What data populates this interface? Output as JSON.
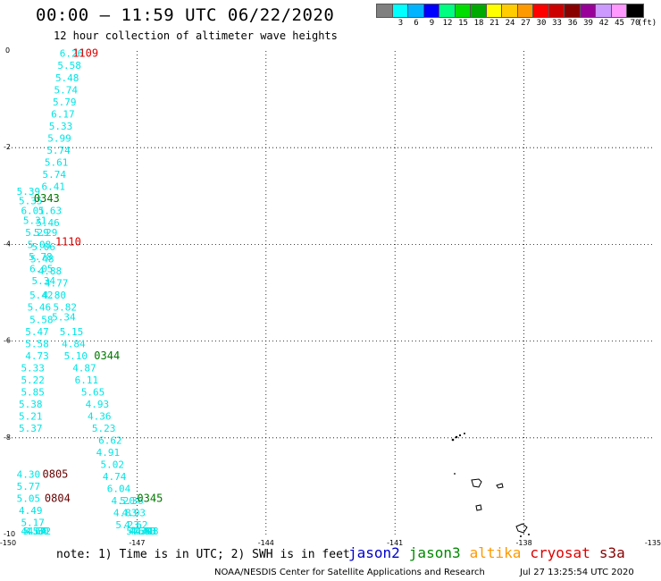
{
  "header": {
    "title": "00:00 – 11:59 UTC 06/22/2020",
    "subtitle": "12 hour collection of altimeter wave heights"
  },
  "colorbar": {
    "unit_label": "(ft)",
    "swatches": [
      {
        "color": "#808080",
        "label": ""
      },
      {
        "color": "#00ffff",
        "label": "3"
      },
      {
        "color": "#00b4ff",
        "label": "6"
      },
      {
        "color": "#0000ff",
        "label": "9"
      },
      {
        "color": "#00ff80",
        "label": "12"
      },
      {
        "color": "#00dd00",
        "label": "15"
      },
      {
        "color": "#00aa00",
        "label": "18"
      },
      {
        "color": "#ffff00",
        "label": "21"
      },
      {
        "color": "#ffcc00",
        "label": "24"
      },
      {
        "color": "#ff9900",
        "label": "27"
      },
      {
        "color": "#ff0000",
        "label": "30"
      },
      {
        "color": "#cc0000",
        "label": "33"
      },
      {
        "color": "#880000",
        "label": "36"
      },
      {
        "color": "#990099",
        "label": "39"
      },
      {
        "color": "#cc99ff",
        "label": "42"
      },
      {
        "color": "#ff99ff",
        "label": "45"
      },
      {
        "color": "#000000",
        "label": "70"
      }
    ]
  },
  "map": {
    "lon_range": [
      -150,
      -135
    ],
    "lat_range": [
      -10,
      0
    ],
    "x_ticks": [
      "-150",
      "-147",
      "-144",
      "-141",
      "-138",
      "-135"
    ],
    "x_tick_values": [
      -150,
      -147,
      -144,
      -141,
      -138,
      -135
    ],
    "y_ticks": [
      "0",
      "-2",
      "-4",
      "-6",
      "-8",
      "-10"
    ],
    "y_tick_values": [
      0,
      -2,
      -4,
      -6,
      -8,
      -10
    ],
    "grid": "dotted",
    "swh_color": "#00e5e5",
    "observations": [
      {
        "lon": -148.8,
        "lat": -0.05,
        "v": "6.26"
      },
      {
        "lon": -148.85,
        "lat": -0.3,
        "v": "5.58"
      },
      {
        "lon": -148.9,
        "lat": -0.55,
        "v": "5.48"
      },
      {
        "lon": -148.93,
        "lat": -0.8,
        "v": "5.74"
      },
      {
        "lon": -148.96,
        "lat": -1.05,
        "v": "5.79"
      },
      {
        "lon": -149.0,
        "lat": -1.3,
        "v": "6.17"
      },
      {
        "lon": -149.05,
        "lat": -1.55,
        "v": "5.33"
      },
      {
        "lon": -149.08,
        "lat": -1.8,
        "v": "5.99"
      },
      {
        "lon": -149.1,
        "lat": -2.05,
        "v": "5.74"
      },
      {
        "lon": -149.15,
        "lat": -2.3,
        "v": "5.61"
      },
      {
        "lon": -149.2,
        "lat": -2.55,
        "v": "5.74"
      },
      {
        "lon": -149.22,
        "lat": -2.8,
        "v": "6.41"
      },
      {
        "lon": -149.3,
        "lat": -3.3,
        "v": "5.63"
      },
      {
        "lon": -149.35,
        "lat": -3.55,
        "v": "5.46"
      },
      {
        "lon": -149.4,
        "lat": -3.75,
        "v": "5.29"
      },
      {
        "lon": -149.45,
        "lat": -4.05,
        "v": "5.06"
      },
      {
        "lon": -149.48,
        "lat": -4.3,
        "v": "5.48"
      },
      {
        "lon": -149.3,
        "lat": -4.55,
        "v": "4.88"
      },
      {
        "lon": -149.15,
        "lat": -4.8,
        "v": "4.77"
      },
      {
        "lon": -149.2,
        "lat": -5.05,
        "v": "4.80"
      },
      {
        "lon": -148.95,
        "lat": -5.3,
        "v": "5.82"
      },
      {
        "lon": -148.98,
        "lat": -5.5,
        "v": "5.34"
      },
      {
        "lon": -148.8,
        "lat": -5.8,
        "v": "5.15"
      },
      {
        "lon": -148.75,
        "lat": -6.05,
        "v": "4.84"
      },
      {
        "lon": -148.7,
        "lat": -6.3,
        "v": "5.10"
      },
      {
        "lon": -148.5,
        "lat": -6.55,
        "v": "4.87"
      },
      {
        "lon": -148.45,
        "lat": -6.8,
        "v": "6.11"
      },
      {
        "lon": -148.3,
        "lat": -7.05,
        "v": "5.65"
      },
      {
        "lon": -148.2,
        "lat": -7.3,
        "v": "4.93"
      },
      {
        "lon": -148.15,
        "lat": -7.55,
        "v": "4.36"
      },
      {
        "lon": -148.05,
        "lat": -7.8,
        "v": "5.23"
      },
      {
        "lon": -147.9,
        "lat": -8.05,
        "v": "6.62"
      },
      {
        "lon": -147.95,
        "lat": -8.3,
        "v": "4.91"
      },
      {
        "lon": -147.85,
        "lat": -8.55,
        "v": "5.02"
      },
      {
        "lon": -147.8,
        "lat": -8.8,
        "v": "4.74"
      },
      {
        "lon": -147.7,
        "lat": -9.05,
        "v": "6.04"
      },
      {
        "lon": -147.6,
        "lat": -9.3,
        "v": "4.20"
      },
      {
        "lon": -147.55,
        "lat": -9.55,
        "v": "4.83"
      },
      {
        "lon": -147.5,
        "lat": -9.8,
        "v": "5.23"
      },
      {
        "lon": -149.8,
        "lat": -2.9,
        "v": "5.39"
      },
      {
        "lon": -149.75,
        "lat": -3.1,
        "v": "5.35"
      },
      {
        "lon": -149.7,
        "lat": -3.3,
        "v": "6.01"
      },
      {
        "lon": -149.65,
        "lat": -3.5,
        "v": "5.31"
      },
      {
        "lon": -149.6,
        "lat": -3.75,
        "v": "5.29"
      },
      {
        "lon": -149.55,
        "lat": -4.0,
        "v": "5.08"
      },
      {
        "lon": -149.52,
        "lat": -4.25,
        "v": "5.78"
      },
      {
        "lon": -149.5,
        "lat": -4.5,
        "v": "6.05"
      },
      {
        "lon": -149.45,
        "lat": -4.75,
        "v": "5.34"
      },
      {
        "lon": -149.5,
        "lat": -5.05,
        "v": "5.42"
      },
      {
        "lon": -149.55,
        "lat": -5.3,
        "v": "5.46"
      },
      {
        "lon": -149.5,
        "lat": -5.55,
        "v": "5.58"
      },
      {
        "lon": -149.6,
        "lat": -5.8,
        "v": "5.47"
      },
      {
        "lon": -149.6,
        "lat": -6.05,
        "v": "5.58"
      },
      {
        "lon": -149.6,
        "lat": -6.3,
        "v": "4.73"
      },
      {
        "lon": -149.7,
        "lat": -6.55,
        "v": "5.33"
      },
      {
        "lon": -149.7,
        "lat": -6.8,
        "v": "5.22"
      },
      {
        "lon": -149.7,
        "lat": -7.05,
        "v": "5.85"
      },
      {
        "lon": -149.75,
        "lat": -7.3,
        "v": "5.38"
      },
      {
        "lon": -149.75,
        "lat": -7.55,
        "v": "5.21"
      },
      {
        "lon": -149.75,
        "lat": -7.8,
        "v": "5.37"
      },
      {
        "lon": -149.8,
        "lat": -8.75,
        "v": "4.30"
      },
      {
        "lon": -149.8,
        "lat": -9.0,
        "v": "5.77"
      },
      {
        "lon": -149.8,
        "lat": -9.25,
        "v": "5.05"
      },
      {
        "lon": -149.75,
        "lat": -9.5,
        "v": "4.49"
      },
      {
        "lon": -149.7,
        "lat": -9.75,
        "v": "5.17"
      },
      {
        "lon": -149.7,
        "lat": -10.0,
        "v": "4.53"
      },
      {
        "lon": -149.65,
        "lat": -10.25,
        "v": "5.64"
      },
      {
        "lon": -149.6,
        "lat": -10.5,
        "v": "4.80"
      },
      {
        "lon": -149.55,
        "lat": -10.75,
        "v": "4.72"
      },
      {
        "lon": -147.4,
        "lat": -9.3,
        "v": "5.36"
      },
      {
        "lon": -147.35,
        "lat": -9.55,
        "v": "4.93"
      },
      {
        "lon": -147.3,
        "lat": -9.8,
        "v": "4.62"
      },
      {
        "lon": -147.25,
        "lat": -10.05,
        "v": "5.69"
      },
      {
        "lon": -147.2,
        "lat": -10.3,
        "v": "4.39"
      },
      {
        "lon": -147.15,
        "lat": -10.5,
        "v": "4.41"
      },
      {
        "lon": -147.1,
        "lat": -10.75,
        "v": "4.53"
      },
      {
        "lon": -147.05,
        "lat": -11.0,
        "v": "4.48"
      }
    ],
    "time_labels": [
      {
        "lon": -148.5,
        "lat": -0.05,
        "v": "1109",
        "color": "#dd0000"
      },
      {
        "lon": -149.4,
        "lat": -3.05,
        "v": "0343",
        "color": "#007700"
      },
      {
        "lon": -148.9,
        "lat": -3.95,
        "v": "1110",
        "color": "#dd0000"
      },
      {
        "lon": -148.0,
        "lat": -6.3,
        "v": "0344",
        "color": "#007700"
      },
      {
        "lon": -149.2,
        "lat": -8.75,
        "v": "0805",
        "color": "#660000"
      },
      {
        "lon": -149.15,
        "lat": -9.25,
        "v": "0804",
        "color": "#660000"
      },
      {
        "lon": -147.0,
        "lat": -9.25,
        "v": "0345",
        "color": "#007700"
      }
    ]
  },
  "footer": {
    "note": "note: 1) Time is in UTC; 2) SWH is in feet",
    "legend": [
      {
        "label": "jason2",
        "color": "#0000cc"
      },
      {
        "label": "jason3",
        "color": "#008800"
      },
      {
        "label": "altika",
        "color": "#ff9900"
      },
      {
        "label": "cryosat",
        "color": "#dd0000"
      },
      {
        "label": "s3a",
        "color": "#880000"
      }
    ],
    "credit": "NOAA/NESDIS Center for Satellite Applications and Research",
    "timestamp": "Jul 27 13:25:54 UTC 2020"
  }
}
